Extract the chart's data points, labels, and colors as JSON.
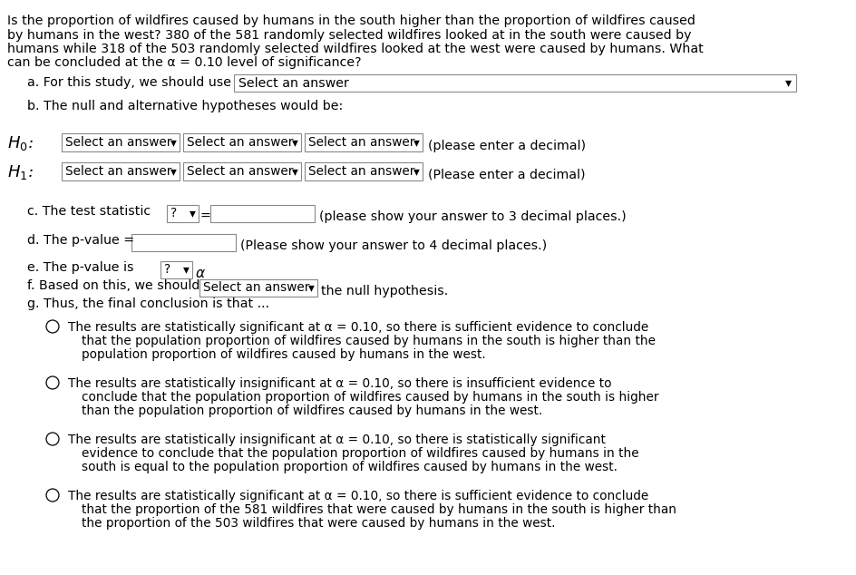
{
  "background_color": "#ffffff",
  "intro_text_lines": [
    "Is the proportion of wildfires caused by humans in the south higher than the proportion of wildfires caused",
    "by humans in the west? 380 of the 581 randomly selected wildfires looked at in the south were caused by",
    "humans while 318 of the 503 randomly selected wildfires looked at the west were caused by humans. What",
    "can be concluded at the α = 0.10 level of significance?"
  ],
  "part_a_label": "a. For this study, we should use",
  "part_a_box": "Select an answer",
  "part_b_label": "b. The null and alternative hypotheses would be:",
  "dropdown_text": "Select an answer",
  "decimal_text": "(please enter a decimal)",
  "Decimal_text2": "(Please enter a decimal)",
  "part_c_label": "c. The test statistic",
  "part_c_q": "?",
  "part_c_eq": "=",
  "part_c_note": "(please show your answer to 3 decimal places.)",
  "part_d_label": "d. The p-value =",
  "part_d_note": "(Please show your answer to 4 decimal places.)",
  "part_e_label": "e. The p-value is",
  "part_e_q": "?",
  "part_f_label": "f. Based on this, we should",
  "part_f_end": "the null hypothesis.",
  "part_g_label": "g. Thus, the final conclusion is that ...",
  "option1_line1": "The results are statistically significant at α = 0.10, so there is sufficient evidence to conclude",
  "option1_line2": "that the population proportion of wildfires caused by humans in the south is higher than the",
  "option1_line3": "population proportion of wildfires caused by humans in the west.",
  "option2_line1": "The results are statistically insignificant at α = 0.10, so there is insufficient evidence to",
  "option2_line2": "conclude that the population proportion of wildfires caused by humans in the south is higher",
  "option2_line3": "than the population proportion of wildfires caused by humans in the west.",
  "option3_line1": "The results are statistically insignificant at α = 0.10, so there is statistically significant",
  "option3_line2": "evidence to conclude that the population proportion of wildfires caused by humans in the",
  "option3_line3": "south is equal to the population proportion of wildfires caused by humans in the west.",
  "option4_line1": "The results are statistically significant at α = 0.10, so there is sufficient evidence to conclude",
  "option4_line2": "that the proportion of the 581 wildfires that were caused by humans in the south is higher than",
  "option4_line3": "the proportion of the 503 wildfires that were caused by humans in the west.",
  "text_color": "#000000",
  "box_color": "#ffffff",
  "box_border": "#888888"
}
